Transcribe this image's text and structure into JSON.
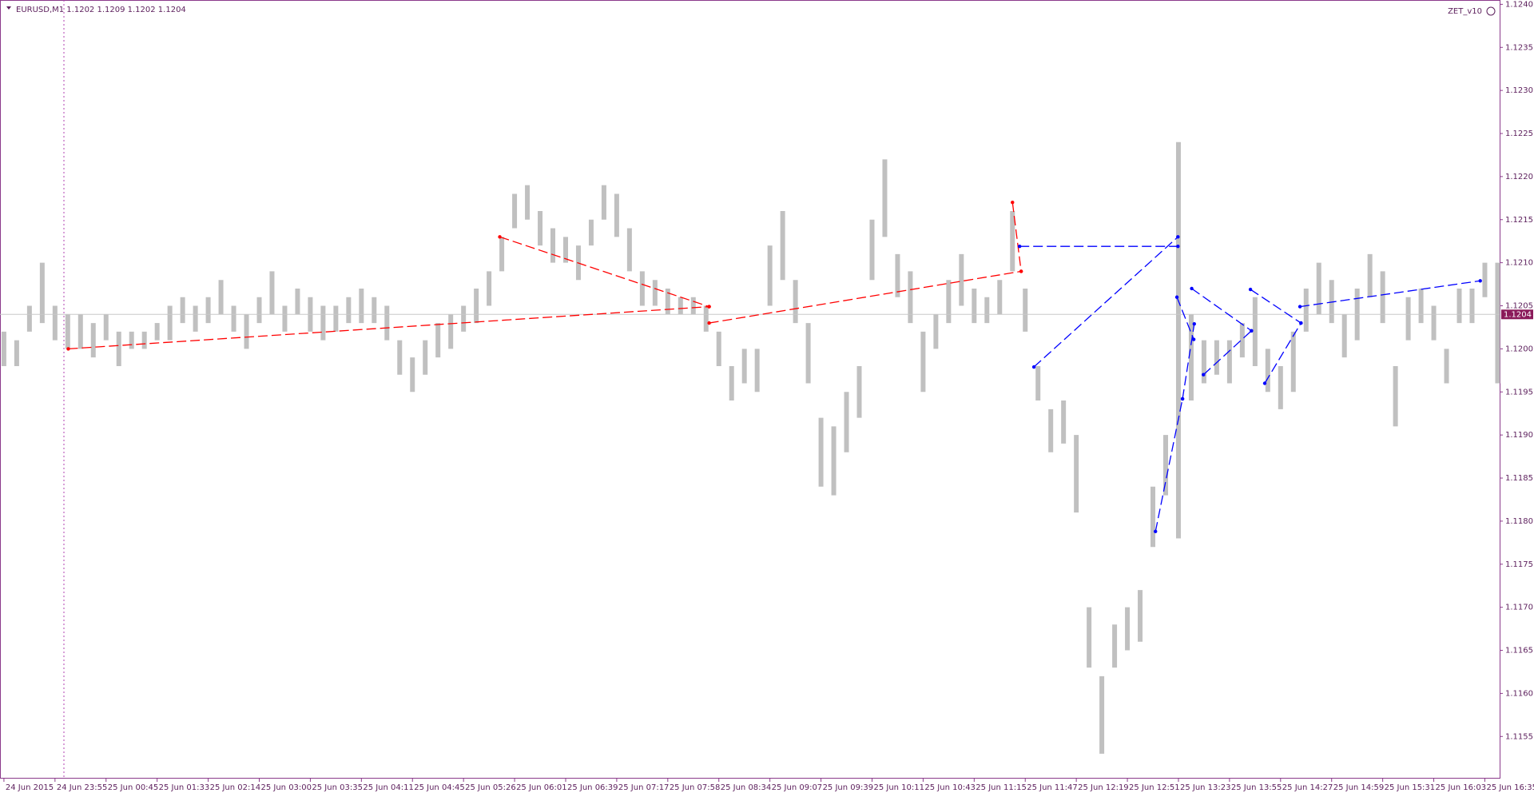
{
  "chart_data": {
    "type": "ohlc",
    "title": "EURUSD,M1 1.1202 1.1209 1.1202 1.1204",
    "indicator": "ZET_v10",
    "last_price": 1.1204,
    "xlim": [
      -0.077,
      29.29
    ],
    "ylim": [
      1.11502,
      1.12405
    ],
    "xticks": [
      {
        "value": 0,
        "label": "24 Jun 2015"
      },
      {
        "value": 1,
        "label": "24 Jun 23:55"
      },
      {
        "value": 2,
        "label": "25 Jun 00:45"
      },
      {
        "value": 3,
        "label": "25 Jun 01:33"
      },
      {
        "value": 4,
        "label": "25 Jun 02:14"
      },
      {
        "value": 5,
        "label": "25 Jun 03:00"
      },
      {
        "value": 6,
        "label": "25 Jun 03:35"
      },
      {
        "value": 7,
        "label": "25 Jun 04:11"
      },
      {
        "value": 8,
        "label": "25 Jun 04:45"
      },
      {
        "value": 9,
        "label": "25 Jun 05:26"
      },
      {
        "value": 10,
        "label": "25 Jun 06:01"
      },
      {
        "value": 11,
        "label": "25 Jun 06:39"
      },
      {
        "value": 12,
        "label": "25 Jun 07:17"
      },
      {
        "value": 13,
        "label": "25 Jun 07:58"
      },
      {
        "value": 14,
        "label": "25 Jun 08:34"
      },
      {
        "value": 15,
        "label": "25 Jun 09:07"
      },
      {
        "value": 16,
        "label": "25 Jun 09:39"
      },
      {
        "value": 17,
        "label": "25 Jun 10:11"
      },
      {
        "value": 18,
        "label": "25 Jun 10:43"
      },
      {
        "value": 19,
        "label": "25 Jun 11:15"
      },
      {
        "value": 20,
        "label": "25 Jun 11:47"
      },
      {
        "value": 21,
        "label": "25 Jun 12:19"
      },
      {
        "value": 22,
        "label": "25 Jun 12:51"
      },
      {
        "value": 23,
        "label": "25 Jun 13:23"
      },
      {
        "value": 24,
        "label": "25 Jun 13:55"
      },
      {
        "value": 25,
        "label": "25 Jun 14:27"
      },
      {
        "value": 26,
        "label": "25 Jun 14:59"
      },
      {
        "value": 27,
        "label": "25 Jun 15:31"
      },
      {
        "value": 28,
        "label": "25 Jun 16:03"
      },
      {
        "value": 29,
        "label": "25 Jun 16:35"
      }
    ],
    "yticks": [
      {
        "value": 1.124,
        "label": "1.1240"
      },
      1.1235,
      {
        "value": 1.123,
        "label": "1.1230"
      },
      1.1225,
      {
        "value": 1.122,
        "label": "1.1220"
      },
      1.1215,
      {
        "value": 1.121,
        "label": "1.1210"
      },
      1.1205,
      {
        "value": 1.12,
        "label": "1.1200"
      },
      1.1195,
      {
        "value": 1.119,
        "label": "1.1190"
      },
      1.1185,
      {
        "value": 1.118,
        "label": "1.1180"
      },
      1.1175,
      {
        "value": 1.117,
        "label": "1.1170"
      },
      1.1165,
      {
        "value": 1.116,
        "label": "1.1160"
      },
      1.1155
    ],
    "bars": {
      "color": "#c0c0c0",
      "x": [
        0,
        0.25,
        0.5,
        0.75,
        1,
        1.25,
        1.5,
        1.75,
        2,
        2.25,
        2.5,
        2.75,
        3,
        3.25,
        3.5,
        3.75,
        4,
        4.25,
        4.5,
        4.75,
        5,
        5.25,
        5.5,
        5.75,
        6,
        6.25,
        6.5,
        6.75,
        7,
        7.25,
        7.5,
        7.75,
        8,
        8.25,
        8.5,
        8.75,
        9,
        9.25,
        9.5,
        9.75,
        10,
        10.25,
        10.5,
        10.75,
        11,
        11.25,
        11.5,
        11.75,
        12,
        12.25,
        12.5,
        12.75,
        13,
        13.25,
        13.5,
        13.75,
        14,
        14.25,
        14.5,
        14.75,
        15,
        15.25,
        15.5,
        15.75,
        16,
        16.25,
        16.5,
        16.75,
        17,
        17.25,
        17.5,
        17.75,
        18,
        18.25,
        18.5,
        18.75,
        19,
        19.25,
        19.5,
        19.75,
        20,
        20.25,
        20.5,
        20.75,
        21,
        21.25,
        21.5,
        21.75,
        22,
        22.25,
        22.5,
        22.75,
        23,
        23.25,
        23.5,
        23.75,
        24,
        24.25,
        24.5,
        24.75,
        25,
        25.25,
        25.5,
        25.75,
        26,
        26.25,
        26.5,
        26.75,
        27,
        27.25,
        27.5,
        27.75,
        28,
        28.25,
        28.5,
        28.75,
        29,
        29.25
      ],
      "high": [
        1.1202,
        1.1201,
        1.1205,
        1.121,
        1.1205,
        1.1204,
        1.1204,
        1.1203,
        1.1204,
        1.1202,
        1.1202,
        1.1202,
        1.1203,
        1.1205,
        1.1206,
        1.1205,
        1.1206,
        1.1208,
        1.1205,
        1.1204,
        1.1206,
        1.1209,
        1.1205,
        1.1207,
        1.1206,
        1.1205,
        1.1205,
        1.1206,
        1.1207,
        1.1206,
        1.1205,
        1.1201,
        1.1199,
        1.1201,
        1.1203,
        1.1204,
        1.1205,
        1.1207,
        1.1209,
        1.1213,
        1.1218,
        1.1219,
        1.1216,
        1.1214,
        1.1213,
        1.1212,
        1.1215,
        1.1219,
        1.1218,
        1.1214,
        1.1209,
        1.1208,
        1.1207,
        1.1206,
        1.1206,
        1.1205,
        1.1202,
        1.1198,
        1.12,
        1.12,
        1.1212,
        1.1216,
        1.1208,
        1.1203,
        1.1192,
        1.1191,
        1.1195,
        1.1198,
        1.1215,
        1.1222,
        1.1211,
        1.1209,
        1.1202,
        1.1204,
        1.1208,
        1.1211,
        1.1207,
        1.1206,
        1.1208,
        1.1216,
        1.1207,
        1.1198,
        1.1193,
        1.1194,
        1.119,
        1.117,
        1.1162,
        1.1168,
        1.117,
        1.1172,
        1.1184,
        1.119,
        1.1224,
        1.1204,
        1.1201,
        1.1201,
        1.1201,
        1.1203,
        1.1206,
        1.12,
        1.1198,
        1.1202,
        1.1207,
        1.121,
        1.1208,
        1.1204,
        1.1207,
        1.1211,
        1.1209,
        1.1198,
        1.1206,
        1.1207,
        1.1205,
        1.12,
        1.1207,
        1.1207,
        1.121,
        1.121
      ],
      "low": [
        1.1198,
        1.1198,
        1.1202,
        1.1203,
        1.1201,
        1.12,
        1.12,
        1.1199,
        1.1201,
        1.1198,
        1.12,
        1.12,
        1.1201,
        1.1201,
        1.1203,
        1.1202,
        1.1203,
        1.1204,
        1.1202,
        1.12,
        1.1203,
        1.1204,
        1.1202,
        1.1204,
        1.1202,
        1.1201,
        1.1202,
        1.1203,
        1.1203,
        1.1203,
        1.1201,
        1.1197,
        1.1195,
        1.1197,
        1.1199,
        1.12,
        1.1202,
        1.1203,
        1.1205,
        1.1209,
        1.1214,
        1.1215,
        1.1212,
        1.121,
        1.121,
        1.1208,
        1.1212,
        1.1215,
        1.1213,
        1.1209,
        1.1205,
        1.1205,
        1.1204,
        1.1204,
        1.1204,
        1.1202,
        1.1198,
        1.1194,
        1.1196,
        1.1195,
        1.1205,
        1.1208,
        1.1203,
        1.1196,
        1.1184,
        1.1183,
        1.1188,
        1.1192,
        1.1208,
        1.1213,
        1.1206,
        1.1203,
        1.1195,
        1.12,
        1.1203,
        1.1205,
        1.1203,
        1.1203,
        1.1204,
        1.1209,
        1.1202,
        1.1194,
        1.1188,
        1.1189,
        1.1181,
        1.1163,
        1.1153,
        1.1163,
        1.1165,
        1.1166,
        1.1177,
        1.1183,
        1.1178,
        1.1194,
        1.1196,
        1.1197,
        1.1196,
        1.1199,
        1.1198,
        1.1195,
        1.1193,
        1.1195,
        1.1202,
        1.1204,
        1.1203,
        1.1199,
        1.1201,
        1.1206,
        1.1203,
        1.1191,
        1.1201,
        1.1203,
        1.1201,
        1.1196,
        1.1203,
        1.1203,
        1.1206,
        1.1196
      ]
    },
    "segments": [
      {
        "color": "#ff0000",
        "x": [
          1.26,
          13.81
        ],
        "y": [
          1.12,
          1.12049
        ]
      },
      {
        "color": "#ff0000",
        "x": [
          9.71,
          13.81
        ],
        "y": [
          1.1213,
          1.12049
        ]
      },
      {
        "color": "#ff0000",
        "x": [
          13.81,
          19.92
        ],
        "y": [
          1.1203,
          1.1209
        ]
      },
      {
        "color": "#ff0000",
        "x": [
          19.75,
          19.92
        ],
        "y": [
          1.1217,
          1.1209
        ]
      },
      {
        "color": "#0000ff",
        "x": [
          19.89,
          22.99
        ],
        "y": [
          1.12119,
          1.12119
        ]
      },
      {
        "color": "#0000ff",
        "x": [
          20.17,
          22.99
        ],
        "y": [
          1.11979,
          1.1213
        ]
      },
      {
        "color": "#0000ff",
        "x": [
          22.55,
          23.08
        ],
        "y": [
          1.11788,
          1.11942
        ]
      },
      {
        "color": "#0000ff",
        "x": [
          22.97,
          23.3
        ],
        "y": [
          1.1206,
          1.12011
        ]
      },
      {
        "color": "#0000ff",
        "x": [
          23.08,
          23.31
        ],
        "y": [
          1.11942,
          1.12029
        ]
      },
      {
        "color": "#0000ff",
        "x": [
          23.26,
          24.43
        ],
        "y": [
          1.1207,
          1.12021
        ]
      },
      {
        "color": "#0000ff",
        "x": [
          23.49,
          24.43
        ],
        "y": [
          1.1197,
          1.12021
        ]
      },
      {
        "color": "#0000ff",
        "x": [
          24.41,
          25.4
        ],
        "y": [
          1.12069,
          1.1203
        ]
      },
      {
        "color": "#0000ff",
        "x": [
          24.69,
          25.4
        ],
        "y": [
          1.1196,
          1.1203
        ]
      },
      {
        "color": "#0000ff",
        "x": [
          25.38,
          28.91
        ],
        "y": [
          1.12049,
          1.12079
        ]
      }
    ]
  }
}
